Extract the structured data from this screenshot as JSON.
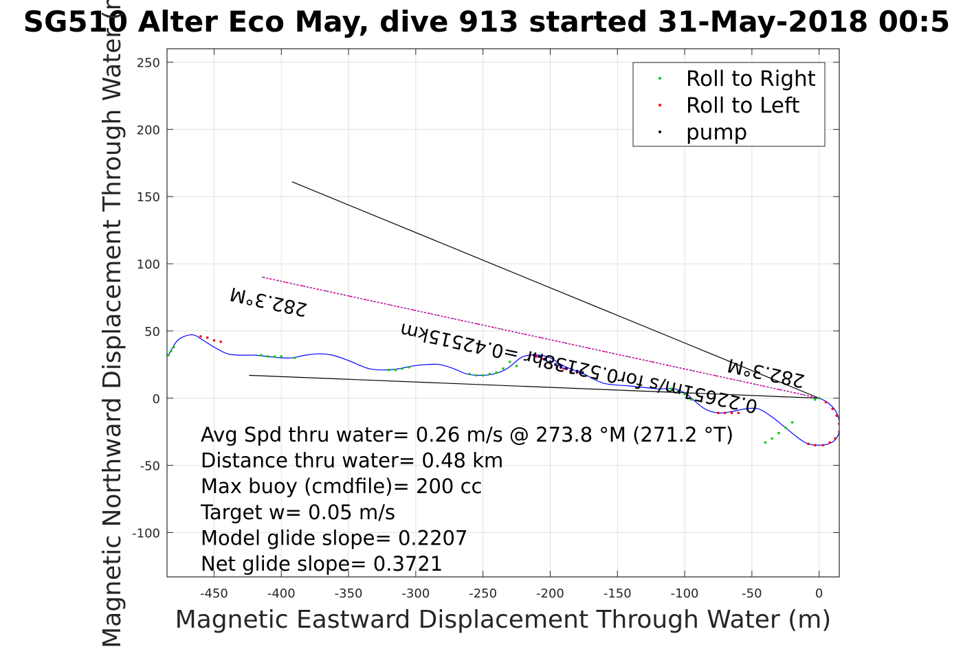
{
  "chart_data": {
    "type": "line",
    "title": "SG510 Alter Eco May, dive 913 started 31-May-2018 00:5",
    "xlabel": "Magnetic Eastward Displacement Through Water (m)",
    "ylabel": "Magnetic Northward Displacement Through Water (m)",
    "xlim": [
      -485,
      15
    ],
    "ylim": [
      -133,
      260
    ],
    "grid": true,
    "xticks": [
      -450,
      -400,
      -350,
      -300,
      -250,
      -200,
      -150,
      -100,
      -50,
      0
    ],
    "yticks": [
      -100,
      -50,
      0,
      50,
      100,
      150,
      200,
      250
    ],
    "legend": {
      "position": "top-right",
      "entries": [
        "Roll to Right",
        "Roll to Left",
        "pump"
      ]
    },
    "colors": {
      "track": "#0000ff",
      "roll_right": "#00cc00",
      "roll_left": "#ff0000",
      "pump": "#000080",
      "heading_line": "#cc00cc",
      "lines": "#000000"
    },
    "track": {
      "x": [
        0,
        6,
        12,
        15,
        15,
        12,
        7,
        0,
        -8,
        -15,
        -25,
        -35,
        -45,
        -55,
        -65,
        -75,
        -85,
        -95,
        -100,
        -108,
        -120,
        -140,
        -160,
        -175,
        -190,
        -200,
        -208,
        -215,
        -222,
        -232,
        -242,
        -252,
        -262,
        -272,
        -282,
        -292,
        -302,
        -312,
        -322,
        -335,
        -350,
        -362,
        -372,
        -382,
        -392,
        -400,
        -410,
        -420,
        -430,
        -440,
        -450,
        -458,
        -465,
        -472,
        -478,
        -484
      ],
      "y": [
        0,
        -3,
        -9,
        -17,
        -25,
        -31,
        -34,
        -35,
        -34,
        -30,
        -22,
        -14,
        -8,
        -8,
        -10,
        -11,
        -8,
        0,
        4,
        7,
        7,
        9,
        11,
        18,
        24,
        30,
        32,
        32,
        30,
        22,
        18,
        17,
        18,
        22,
        25,
        25,
        24,
        22,
        21,
        22,
        28,
        32,
        33,
        32,
        30,
        30,
        31,
        32,
        32,
        33,
        38,
        43,
        47,
        46,
        42,
        32
      ]
    },
    "roll_right": {
      "x": [
        0,
        -3,
        -20,
        -25,
        -30,
        -35,
        -40,
        -95,
        -100,
        -105,
        -110,
        -225,
        -230,
        -235,
        -240,
        -245,
        -250,
        -255,
        -260,
        -305,
        -310,
        -315,
        -320,
        -390,
        -400,
        -405,
        -410,
        -415,
        -480,
        -482,
        -484
      ],
      "y": [
        0,
        -1,
        -18,
        -22,
        -26,
        -30,
        -33,
        -1,
        3,
        5,
        7,
        24,
        27,
        22,
        19,
        18,
        17,
        17,
        18,
        23,
        22,
        21,
        21,
        30,
        31,
        31,
        31,
        32,
        38,
        35,
        32
      ]
    },
    "roll_left": {
      "x": [
        5,
        10,
        13,
        15,
        15,
        12,
        8,
        3,
        -3,
        -8,
        -60,
        -65,
        -70,
        -75,
        -180,
        -185,
        -190,
        -195,
        -200,
        -205,
        -210,
        -215,
        -445,
        -450,
        -455,
        -460
      ],
      "y": [
        -3,
        -8,
        -13,
        -19,
        -25,
        -30,
        -33,
        -35,
        -35,
        -34,
        -11,
        -11,
        -11,
        -11,
        19,
        20,
        22,
        23,
        26,
        29,
        31,
        32,
        42,
        43,
        45,
        46
      ]
    },
    "pump": {
      "x": [
        -176,
        -180,
        -184,
        -188,
        -192,
        -196,
        -200,
        -204,
        -208,
        -212
      ],
      "y": [
        19,
        20,
        21,
        22,
        23,
        25,
        27,
        29,
        31,
        32
      ]
    },
    "lines": [
      {
        "name": "upper line",
        "x": [
          0,
          -392
        ],
        "y": [
          0,
          161
        ]
      },
      {
        "name": "lower line",
        "x": [
          0,
          -424
        ],
        "y": [
          0,
          17
        ]
      },
      {
        "name": "heading line",
        "x": [
          0,
          -414
        ],
        "y": [
          0,
          90
        ]
      }
    ],
    "annotations": [
      {
        "text": "282.3°M",
        "x": -415,
        "y": 90,
        "angle": 192.3,
        "anchor": "far"
      },
      {
        "text": "282.3°M",
        "x": -55,
        "y": 12,
        "angle": 192.3,
        "anchor": "near"
      },
      {
        "text": "0.22651m/s for0.52138hr =0.42515km",
        "x": -45,
        "y": 4,
        "angle": 192.3,
        "anchor": "center"
      }
    ],
    "stats": [
      "Avg Spd thru water=  0.26 m/s @ 273.8 °M (271.2 °T)",
      "Distance thru water=  0.48 km",
      "Max buoy (cmdfile)= 200 cc",
      "Target w= 0.05 m/s",
      "Model glide slope= 0.2207",
      "Net glide slope= 0.3721"
    ]
  }
}
